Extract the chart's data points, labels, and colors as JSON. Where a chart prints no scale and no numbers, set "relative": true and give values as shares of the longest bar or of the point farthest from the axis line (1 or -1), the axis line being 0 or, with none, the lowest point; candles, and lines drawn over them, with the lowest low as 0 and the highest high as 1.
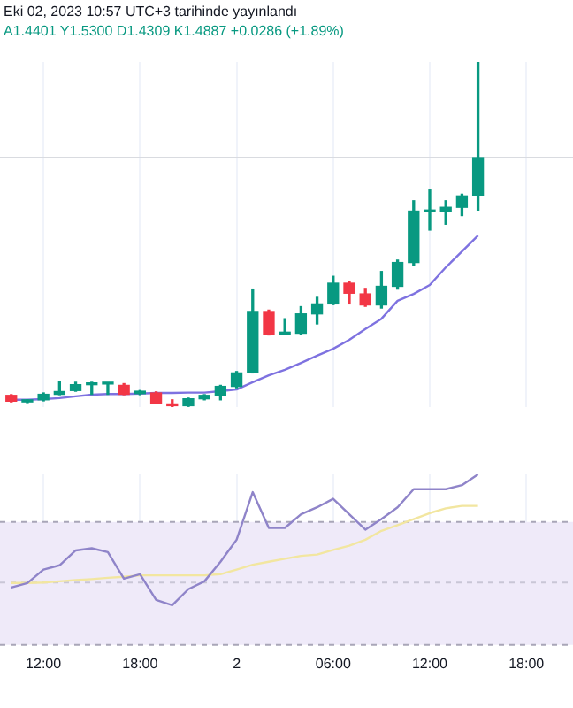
{
  "chart_data": [
    {
      "type": "candlestick",
      "relative": true,
      "subtitle": "A1.4401 Y1.5300 D1.4309 K1.4887 +0.0286 (+1.89%)",
      "annotations": [
        "Eki 02, 2023 10:57 UTC+3 tarihinde yayınlandı"
      ],
      "x": [
        "2023-10-01T10:00",
        "2023-10-01T11:00",
        "2023-10-01T12:00",
        "2023-10-01T13:00",
        "2023-10-01T14:00",
        "2023-10-01T15:00",
        "2023-10-01T16:00",
        "2023-10-01T17:00",
        "2023-10-01T18:00",
        "2023-10-01T19:00",
        "2023-10-01T20:00",
        "2023-10-01T21:00",
        "2023-10-01T22:00",
        "2023-10-01T23:00",
        "2023-10-02T00:00",
        "2023-10-02T01:00",
        "2023-10-02T02:00",
        "2023-10-02T03:00",
        "2023-10-02T04:00",
        "2023-10-02T05:00",
        "2023-10-02T06:00",
        "2023-10-02T07:00",
        "2023-10-02T08:00",
        "2023-10-02T09:00",
        "2023-10-02T10:00",
        "2023-10-02T11:00",
        "2023-10-02T12:00",
        "2023-10-02T13:00",
        "2023-10-02T14:00",
        "2023-10-02T15:00"
      ],
      "ohlc": [
        [
          0.034,
          0.036,
          0.015,
          0.017
        ],
        [
          0.015,
          0.021,
          0.013,
          0.021
        ],
        [
          0.021,
          0.041,
          0.018,
          0.037
        ],
        [
          0.037,
          0.073,
          0.036,
          0.045
        ],
        [
          0.048,
          0.072,
          0.046,
          0.065
        ],
        [
          0.065,
          0.072,
          0.037,
          0.07
        ],
        [
          0.067,
          0.07,
          0.037,
          0.069
        ],
        [
          0.063,
          0.068,
          0.036,
          0.037
        ],
        [
          0.039,
          0.048,
          0.036,
          0.046
        ],
        [
          0.041,
          0.044,
          0.01,
          0.012
        ],
        [
          0.009,
          0.021,
          0,
          0.004
        ],
        [
          0.004,
          0.026,
          0.002,
          0.024
        ],
        [
          0.024,
          0.036,
          0.021,
          0.034
        ],
        [
          0.034,
          0.063,
          0.021,
          0.06
        ],
        [
          0.06,
          0.103,
          0.056,
          0.099
        ],
        [
          0.099,
          0.342,
          0.099,
          0.277
        ],
        [
          0.277,
          0.281,
          0.209,
          0.21
        ],
        [
          0.212,
          0.256,
          0.21,
          0.214
        ],
        [
          0.214,
          0.291,
          0.21,
          0.27
        ],
        [
          0.27,
          0.318,
          0.241,
          0.299
        ],
        [
          0.299,
          0.379,
          0.297,
          0.359
        ],
        [
          0.359,
          0.364,
          0.299,
          0.33
        ],
        [
          0.328,
          0.344,
          0.292,
          0.296
        ],
        [
          0.296,
          0.393,
          0.287,
          0.35
        ],
        [
          0.35,
          0.426,
          0.342,
          0.419
        ],
        [
          0.419,
          0.598,
          0.41,
          0.568
        ],
        [
          0.566,
          0.629,
          0.513,
          0.568
        ],
        [
          0.568,
          0.598,
          0.53,
          0.579
        ],
        [
          0.579,
          0.617,
          0.555,
          0.612
        ],
        [
          0.612,
          1,
          0.571,
          0.723
        ]
      ],
      "colors": [
        "#f23645",
        "#089981",
        "#089981",
        "#089981",
        "#089981",
        "#089981",
        "#089981",
        "#f23645",
        "#089981",
        "#f23645",
        "#f23645",
        "#089981",
        "#089981",
        "#089981",
        "#089981",
        "#089981",
        "#f23645",
        "#089981",
        "#089981",
        "#089981",
        "#089981",
        "#f23645",
        "#f23645",
        "#089981",
        "#089981",
        "#089981",
        "#089981",
        "#089981",
        "#089981",
        "#089981"
      ],
      "series": [
        {
          "type": "line",
          "color": "#7e72e0",
          "values": [
            0.021,
            0.021,
            0.023,
            0.026,
            0.031,
            0.036,
            0.038,
            0.038,
            0.039,
            0.041,
            0.041,
            0.042,
            0.042,
            0.046,
            0.051,
            0.072,
            0.092,
            0.108,
            0.128,
            0.149,
            0.169,
            0.195,
            0.226,
            0.256,
            0.308,
            0.328,
            0.354,
            0.405,
            0.451,
            0.497
          ]
        }
      ],
      "ref_lines": [
        {
          "axis": "y",
          "value": 0.723,
          "color": "#d9dbe0"
        }
      ],
      "xlim": [
        "2023-10-01T09:18",
        "2023-10-02T20:54"
      ],
      "xticks": [
        {
          "value": "2023-10-01T12:00",
          "label": null
        },
        {
          "value": "2023-10-01T18:00",
          "label": null
        },
        {
          "value": "2023-10-02T00:00",
          "label": null
        },
        {
          "value": "2023-10-02T06:00",
          "label": null
        },
        {
          "value": "2023-10-02T12:00",
          "label": null
        },
        {
          "value": "2023-10-02T18:00",
          "label": null
        }
      ],
      "tick_labels": false,
      "grid": "x",
      "marker": "none"
    },
    {
      "type": "line",
      "relative": true,
      "x": [
        "2023-10-01T10:00",
        "2023-10-01T11:00",
        "2023-10-01T12:00",
        "2023-10-01T13:00",
        "2023-10-01T14:00",
        "2023-10-01T15:00",
        "2023-10-01T16:00",
        "2023-10-01T17:00",
        "2023-10-01T18:00",
        "2023-10-01T19:00",
        "2023-10-01T20:00",
        "2023-10-01T21:00",
        "2023-10-01T22:00",
        "2023-10-01T23:00",
        "2023-10-02T00:00",
        "2023-10-02T01:00",
        "2023-10-02T02:00",
        "2023-10-02T03:00",
        "2023-10-02T04:00",
        "2023-10-02T05:00",
        "2023-10-02T06:00",
        "2023-10-02T07:00",
        "2023-10-02T08:00",
        "2023-10-02T09:00",
        "2023-10-02T10:00",
        "2023-10-02T11:00",
        "2023-10-02T12:00",
        "2023-10-02T13:00",
        "2023-10-02T14:00",
        "2023-10-02T15:00"
      ],
      "series": [
        {
          "color": "#8f84c9",
          "values": [
            0.337,
            0.363,
            0.442,
            0.467,
            0.554,
            0.567,
            0.544,
            0.389,
            0.415,
            0.264,
            0.233,
            0.327,
            0.373,
            0.488,
            0.617,
            0.896,
            0.686,
            0.686,
            0.766,
            0.807,
            0.857,
            0.766,
            0.676,
            0.738,
            0.807,
            0.913,
            0.913,
            0.913,
            0.937,
            1
          ]
        },
        {
          "color": "#f2e6a0",
          "values": [
            0.363,
            0.363,
            0.366,
            0.373,
            0.38,
            0.386,
            0.394,
            0.4,
            0.408,
            0.408,
            0.408,
            0.408,
            0.408,
            0.415,
            0.442,
            0.47,
            0.488,
            0.505,
            0.522,
            0.53,
            0.557,
            0.582,
            0.617,
            0.669,
            0.703,
            0.738,
            0.773,
            0.801,
            0.815,
            0.815
          ]
        }
      ],
      "bands": [
        {
          "axis": "y",
          "from": 0,
          "to": 0.721,
          "color": "#efeaf9"
        }
      ],
      "ref_lines": [
        {
          "axis": "y",
          "value": 0.721,
          "color": "#a9a6b8",
          "line_style": "dashed"
        },
        {
          "axis": "y",
          "value": 0.366,
          "color": "#c9c6d6",
          "line_style": "dashed"
        },
        {
          "axis": "y",
          "value": 0,
          "color": "#a9a6b8",
          "line_style": "dashed"
        }
      ],
      "xlim": [
        "2023-10-01T09:18",
        "2023-10-02T20:54"
      ],
      "xticks": [
        {
          "value": "2023-10-01T12:00",
          "label": "12:00"
        },
        {
          "value": "2023-10-01T18:00",
          "label": "18:00"
        },
        {
          "value": "2023-10-02T00:00",
          "label": "2"
        },
        {
          "value": "2023-10-02T06:00",
          "label": "06:00"
        },
        {
          "value": "2023-10-02T12:00",
          "label": "12:00"
        },
        {
          "value": "2023-10-02T18:00",
          "label": "18:00"
        }
      ],
      "tick_labels": "x",
      "grid": "x",
      "marker": "none"
    }
  ]
}
